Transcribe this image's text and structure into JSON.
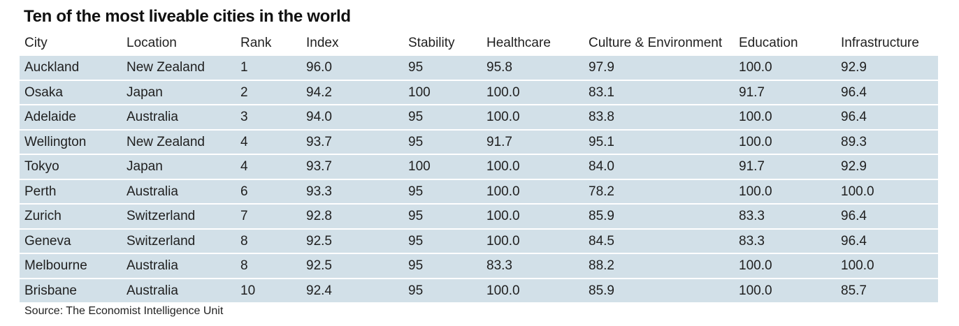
{
  "title": "Ten of the most liveable cities in the world",
  "columns": [
    "City",
    "Location",
    "Rank",
    "Index",
    "Stability",
    "Healthcare",
    "Culture & Environment",
    "Education",
    "Infrastructure"
  ],
  "rows": [
    [
      "Auckland",
      "New Zealand",
      "1",
      "96.0",
      "95",
      "95.8",
      "97.9",
      "100.0",
      "92.9"
    ],
    [
      "Osaka",
      "Japan",
      "2",
      "94.2",
      "100",
      "100.0",
      "83.1",
      "91.7",
      "96.4"
    ],
    [
      "Adelaide",
      "Australia",
      "3",
      "94.0",
      "95",
      "100.0",
      "83.8",
      "100.0",
      "96.4"
    ],
    [
      "Wellington",
      "New Zealand",
      "4",
      "93.7",
      "95",
      "91.7",
      "95.1",
      "100.0",
      "89.3"
    ],
    [
      "Tokyo",
      "Japan",
      "4",
      "93.7",
      "100",
      "100.0",
      "84.0",
      "91.7",
      "92.9"
    ],
    [
      "Perth",
      "Australia",
      "6",
      "93.3",
      "95",
      "100.0",
      "78.2",
      "100.0",
      "100.0"
    ],
    [
      "Zurich",
      "Switzerland",
      "7",
      "92.8",
      "95",
      "100.0",
      "85.9",
      "83.3",
      "96.4"
    ],
    [
      "Geneva",
      "Switzerland",
      "8",
      "92.5",
      "95",
      "100.0",
      "84.5",
      "83.3",
      "96.4"
    ],
    [
      "Melbourne",
      "Australia",
      "8",
      "92.5",
      "95",
      "83.3",
      "88.2",
      "100.0",
      "100.0"
    ],
    [
      "Brisbane",
      "Australia",
      "10",
      "92.4",
      "95",
      "100.0",
      "85.9",
      "100.0",
      "85.7"
    ]
  ],
  "source": "Source: The Economist Intelligence Unit",
  "colors": {
    "row_background": "#d2e0e8",
    "text": "#1f1f1f"
  }
}
